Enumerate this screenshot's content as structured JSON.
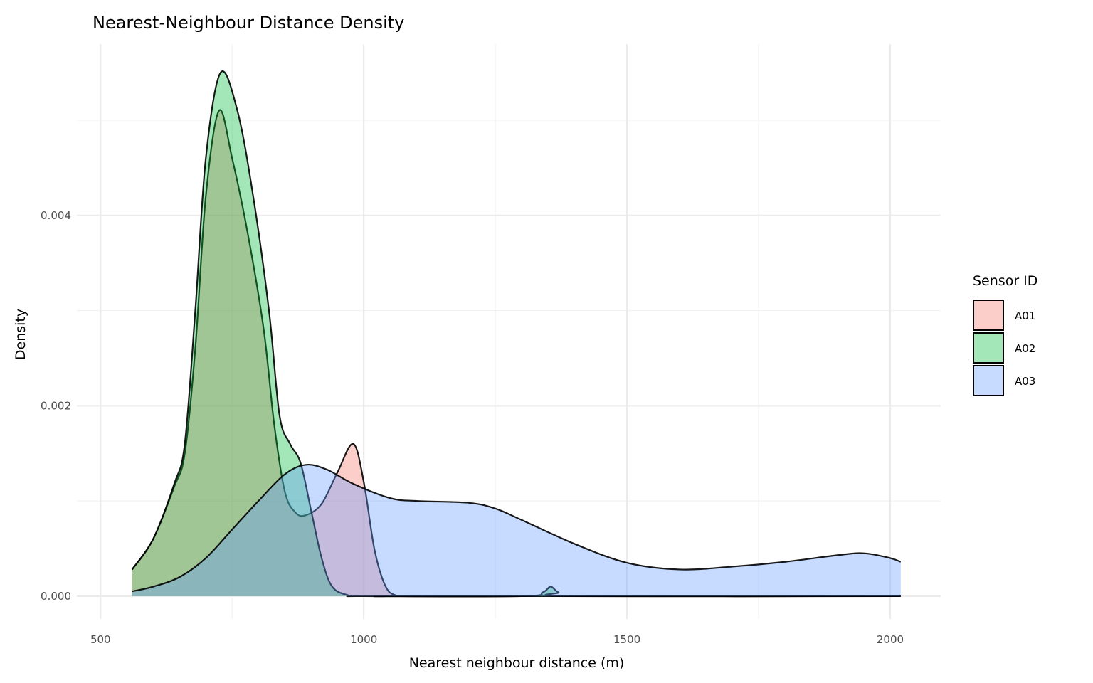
{
  "chart_data": {
    "type": "area",
    "title": "Nearest-Neighbour Distance Density",
    "xlabel": "Nearest neighbour distance (m)",
    "ylabel": "Density",
    "xlim": [
      455,
      2096
    ],
    "ylim": [
      -0.00024,
      0.0058
    ],
    "x_ticks": [
      500,
      1000,
      1500,
      2000
    ],
    "x_tick_labels": [
      "500",
      "1000",
      "1500",
      "2000"
    ],
    "x_minor": [
      750,
      1250,
      1750
    ],
    "y_ticks": [
      0,
      0.002,
      0.004
    ],
    "y_tick_labels": [
      "0.000",
      "0.002",
      "0.004"
    ],
    "y_minor": [
      0.001,
      0.003,
      0.005
    ],
    "grid": true,
    "legend": {
      "title": "Sensor ID",
      "placement": "right"
    },
    "series": [
      {
        "name": "A01",
        "color": "#F8766D",
        "x": [
          560,
          600,
          640,
          660,
          680,
          700,
          725,
          750,
          780,
          810,
          830,
          850,
          870,
          890,
          920,
          950,
          980,
          1000,
          1020,
          1040,
          1060,
          1100,
          2020
        ],
        "y": [
          0.00028,
          0.0006,
          0.00115,
          0.0015,
          0.0026,
          0.0042,
          0.0051,
          0.0046,
          0.0038,
          0.0028,
          0.0018,
          0.0011,
          0.00088,
          0.00085,
          0.00097,
          0.0013,
          0.0016,
          0.0012,
          0.0005,
          0.00012,
          1e-05,
          0,
          0
        ]
      },
      {
        "name": "A02",
        "color": "#00BA38",
        "x": [
          560,
          600,
          640,
          660,
          680,
          700,
          728,
          760,
          790,
          820,
          840,
          860,
          880,
          900,
          920,
          940,
          970,
          1000,
          1300,
          1340,
          1355,
          1370,
          1400,
          2020
        ],
        "y": [
          0.00028,
          0.0006,
          0.00118,
          0.0016,
          0.003,
          0.0046,
          0.0055,
          0.0051,
          0.0042,
          0.003,
          0.0019,
          0.0016,
          0.0014,
          0.0009,
          0.0004,
          0.0001,
          1e-05,
          0,
          0,
          4e-05,
          0.0001,
          4e-05,
          0,
          0
        ]
      },
      {
        "name": "A03",
        "color": "#619CFF",
        "x": [
          560,
          600,
          650,
          700,
          750,
          800,
          850,
          890,
          930,
          980,
          1050,
          1100,
          1200,
          1250,
          1300,
          1400,
          1500,
          1600,
          1700,
          1800,
          1900,
          1950,
          2000,
          2020
        ],
        "y": [
          5e-05,
          0.0001,
          0.0002,
          0.0004,
          0.0007,
          0.001,
          0.00128,
          0.00138,
          0.00133,
          0.00118,
          0.00103,
          0.001,
          0.00098,
          0.00092,
          0.0008,
          0.00055,
          0.00035,
          0.00028,
          0.00031,
          0.00036,
          0.00043,
          0.00045,
          0.0004,
          0.00036
        ]
      }
    ]
  }
}
